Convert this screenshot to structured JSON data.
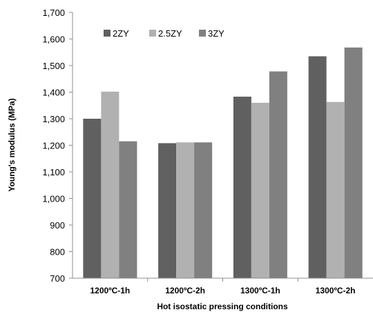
{
  "chart_data": {
    "type": "bar",
    "xlabel": "Hot isostatic pressing conditions",
    "ylabel": "Young's modulus (MPa)",
    "ylim": [
      700,
      1700
    ],
    "yticks": [
      "700",
      "800",
      "900",
      "1,000",
      "1,100",
      "1,200",
      "1,300",
      "1,400",
      "1,500",
      "1,600",
      "1,700"
    ],
    "categories": [
      "1200ºC-1h",
      "1200ºC-2h",
      "1300ºC-1h",
      "1300ºC-2h"
    ],
    "series": [
      {
        "name": "2ZY",
        "values": [
          1300,
          1208,
          1383,
          1535
        ],
        "color": "#606060"
      },
      {
        "name": "2.5ZY",
        "values": [
          1402,
          1211,
          1360,
          1363
        ],
        "color": "#b1b1b1"
      },
      {
        "name": "3ZY",
        "values": [
          1215,
          1211,
          1478,
          1568
        ],
        "color": "#808080"
      }
    ],
    "legend_position": "top-left",
    "grid": false
  }
}
